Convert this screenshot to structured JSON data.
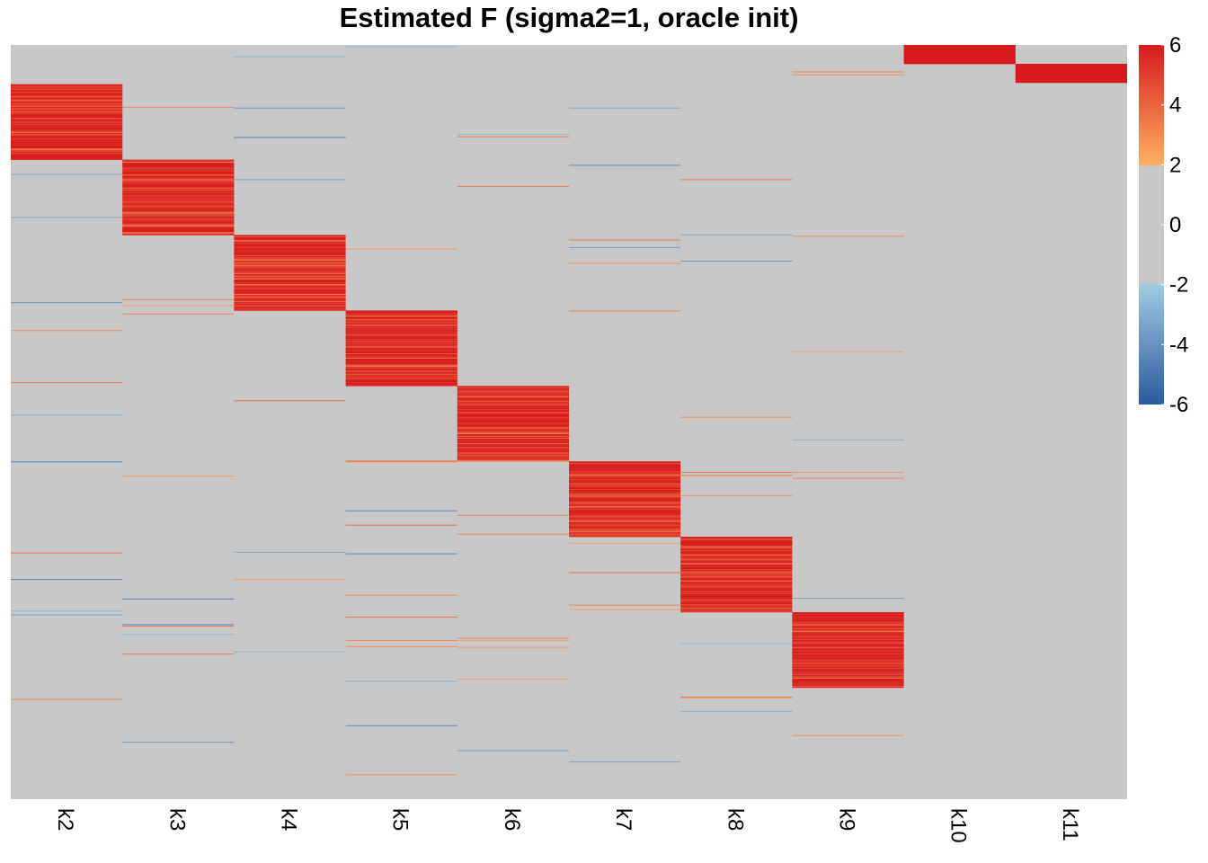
{
  "chart_data": {
    "type": "heatmap",
    "title": "Estimated F (sigma2=1, oracle init)",
    "columns": [
      "k2",
      "k3",
      "k4",
      "k5",
      "k6",
      "k7",
      "k8",
      "k9",
      "k10",
      "k11"
    ],
    "n_rows": 1000,
    "blocks": [
      {
        "column": "k2",
        "row_start": 52,
        "row_end": 152,
        "value": 5.5
      },
      {
        "column": "k3",
        "row_start": 152,
        "row_end": 252,
        "value": 5.5
      },
      {
        "column": "k4",
        "row_start": 252,
        "row_end": 352,
        "value": 5.5
      },
      {
        "column": "k5",
        "row_start": 352,
        "row_end": 452,
        "value": 5.3
      },
      {
        "column": "k6",
        "row_start": 452,
        "row_end": 552,
        "value": 5.5
      },
      {
        "column": "k7",
        "row_start": 552,
        "row_end": 652,
        "value": 5.3
      },
      {
        "column": "k8",
        "row_start": 652,
        "row_end": 752,
        "value": 5.5
      },
      {
        "column": "k9",
        "row_start": 752,
        "row_end": 852,
        "value": 5.5
      },
      {
        "column": "k10",
        "row_start": 0,
        "row_end": 25,
        "value": 6
      },
      {
        "column": "k11",
        "row_start": 25,
        "row_end": 50,
        "value": 6
      }
    ],
    "legend": {
      "placement": "right",
      "range": [
        -6,
        6
      ],
      "ticks": [
        "6",
        "4",
        "2",
        "0",
        "-2",
        "-4",
        "-6"
      ],
      "colors": [
        "#2b5a9e",
        "#9ecae1",
        "#c8c8c8",
        "#c8c8c8",
        "#fdae61",
        "#d7191c"
      ]
    },
    "background_color": "#c8c8c8"
  }
}
